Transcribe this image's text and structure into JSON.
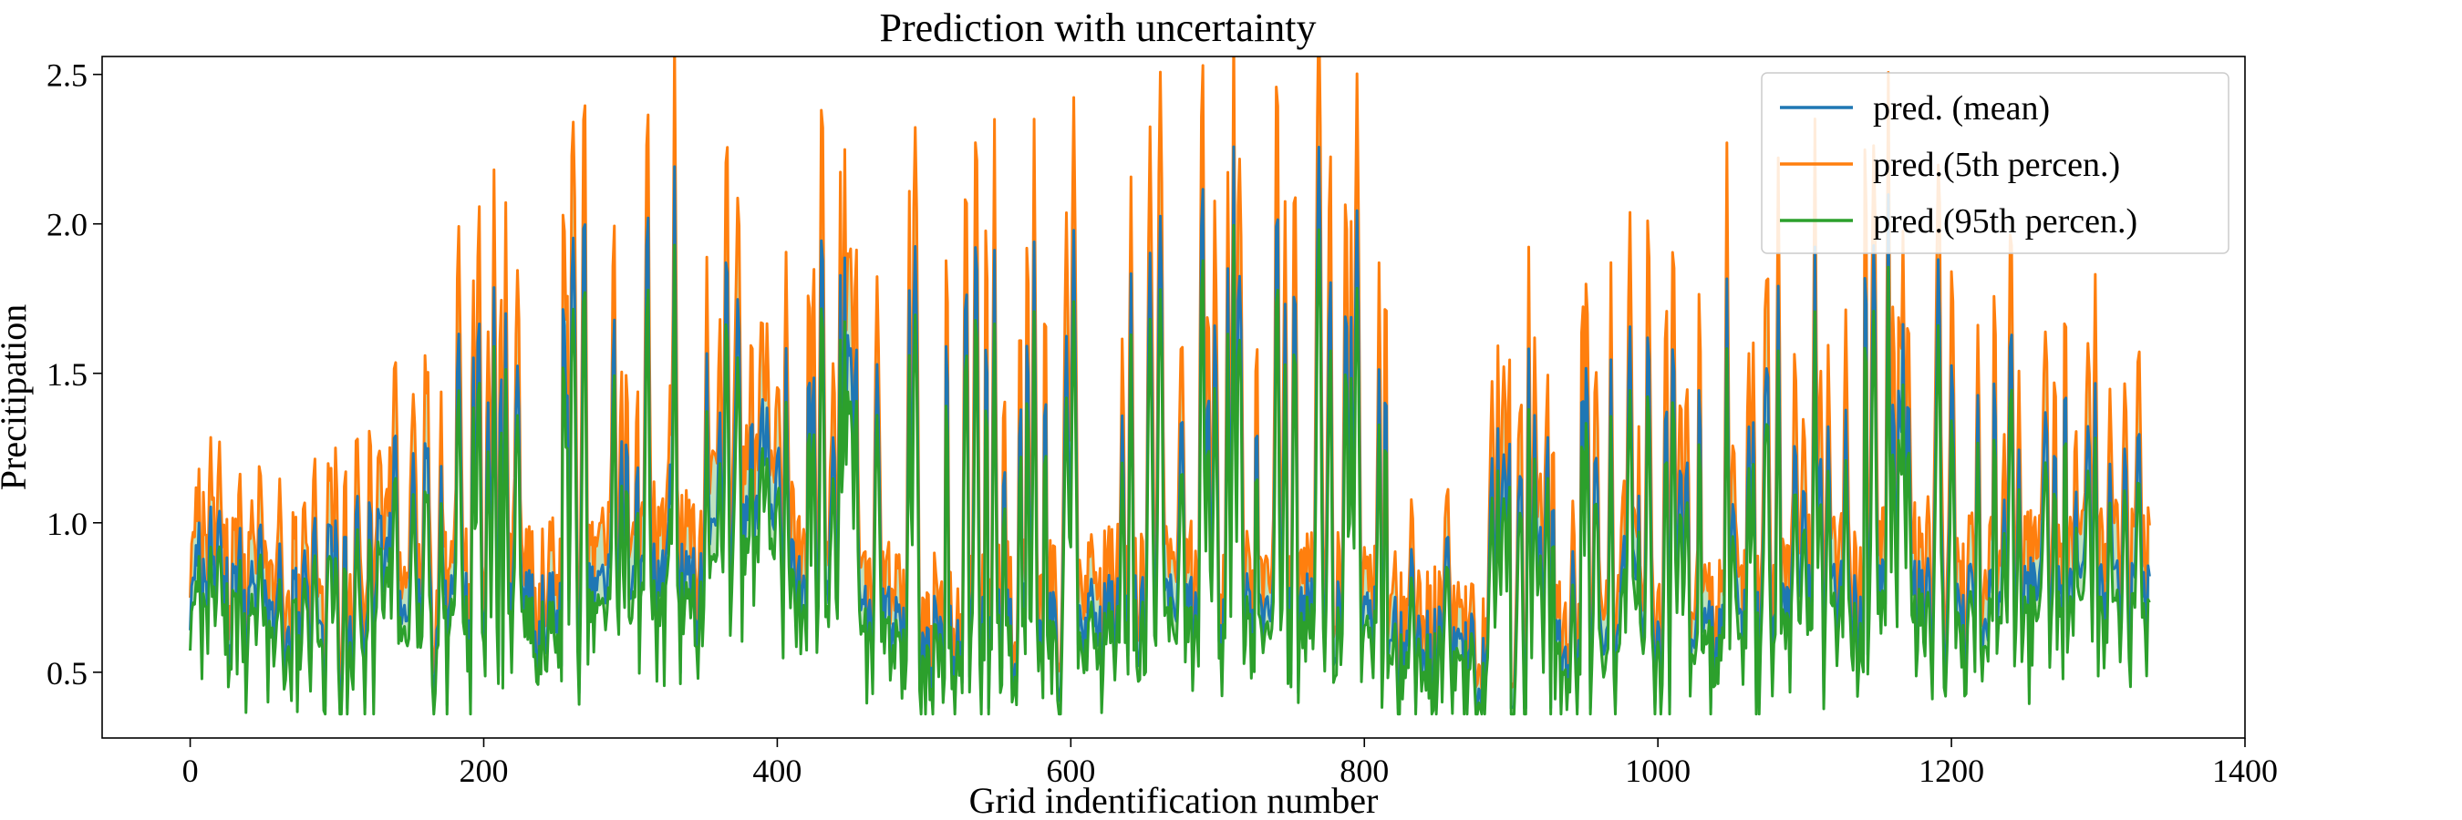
{
  "chart_data": {
    "type": "line",
    "title": "Prediction with uncertainty",
    "xlabel": "Grid indentification number",
    "ylabel": "Precitipation",
    "xlim": [
      -60,
      1400
    ],
    "ylim": [
      0.28,
      2.56
    ],
    "xticks": [
      0,
      200,
      400,
      600,
      800,
      1000,
      1200,
      1400
    ],
    "yticks": [
      0.5,
      1.0,
      1.5,
      2.0,
      2.5
    ],
    "ytick_labels": [
      "0.5",
      "1.0",
      "1.5",
      "2.0",
      "2.5"
    ],
    "grid": false,
    "legend_position": "top-right",
    "n_points": 1336,
    "fill_between": {
      "color": "#2ca02c",
      "opacity": 0.3
    },
    "series": [
      {
        "name": "pred. (mean)",
        "color": "#1f77b4"
      },
      {
        "name": "pred.(5th percen.)",
        "color": "#ff7f0e"
      },
      {
        "name": "pred.(95th percen.)",
        "color": "#2ca02c"
      }
    ],
    "envelope": {
      "x": [
        0,
        10,
        20,
        40,
        60,
        80,
        100,
        130,
        160,
        200,
        240,
        270,
        300,
        330,
        360,
        390,
        420,
        450,
        480,
        520,
        560,
        600,
        640,
        680,
        720,
        760,
        800,
        840,
        880,
        920,
        960,
        1000,
        1040,
        1080,
        1120,
        1160,
        1200,
        1240,
        1280,
        1336
      ],
      "base": [
        0.78,
        0.8,
        0.8,
        0.78,
        0.72,
        0.7,
        0.68,
        0.68,
        0.74,
        0.76,
        0.75,
        0.8,
        0.82,
        0.86,
        0.95,
        1.05,
        0.8,
        0.72,
        0.7,
        0.68,
        0.7,
        0.74,
        0.74,
        0.75,
        0.76,
        0.74,
        0.72,
        0.64,
        0.6,
        0.6,
        0.6,
        0.63,
        0.7,
        0.76,
        0.78,
        0.8,
        0.8,
        0.8,
        0.8,
        0.8
      ],
      "peak": [
        1.15,
        1.1,
        1.05,
        1.0,
        1.0,
        1.0,
        1.15,
        1.35,
        1.7,
        1.85,
        2.05,
        2.2,
        2.3,
        2.35,
        2.2,
        1.6,
        2.05,
        2.0,
        2.05,
        2.0,
        2.0,
        2.05,
        2.1,
        2.25,
        2.3,
        2.3,
        2.0,
        1.45,
        1.4,
        1.75,
        1.75,
        1.8,
        1.85,
        1.95,
        2.2,
        2.05,
        1.95,
        1.85,
        1.8,
        1.3
      ]
    }
  }
}
